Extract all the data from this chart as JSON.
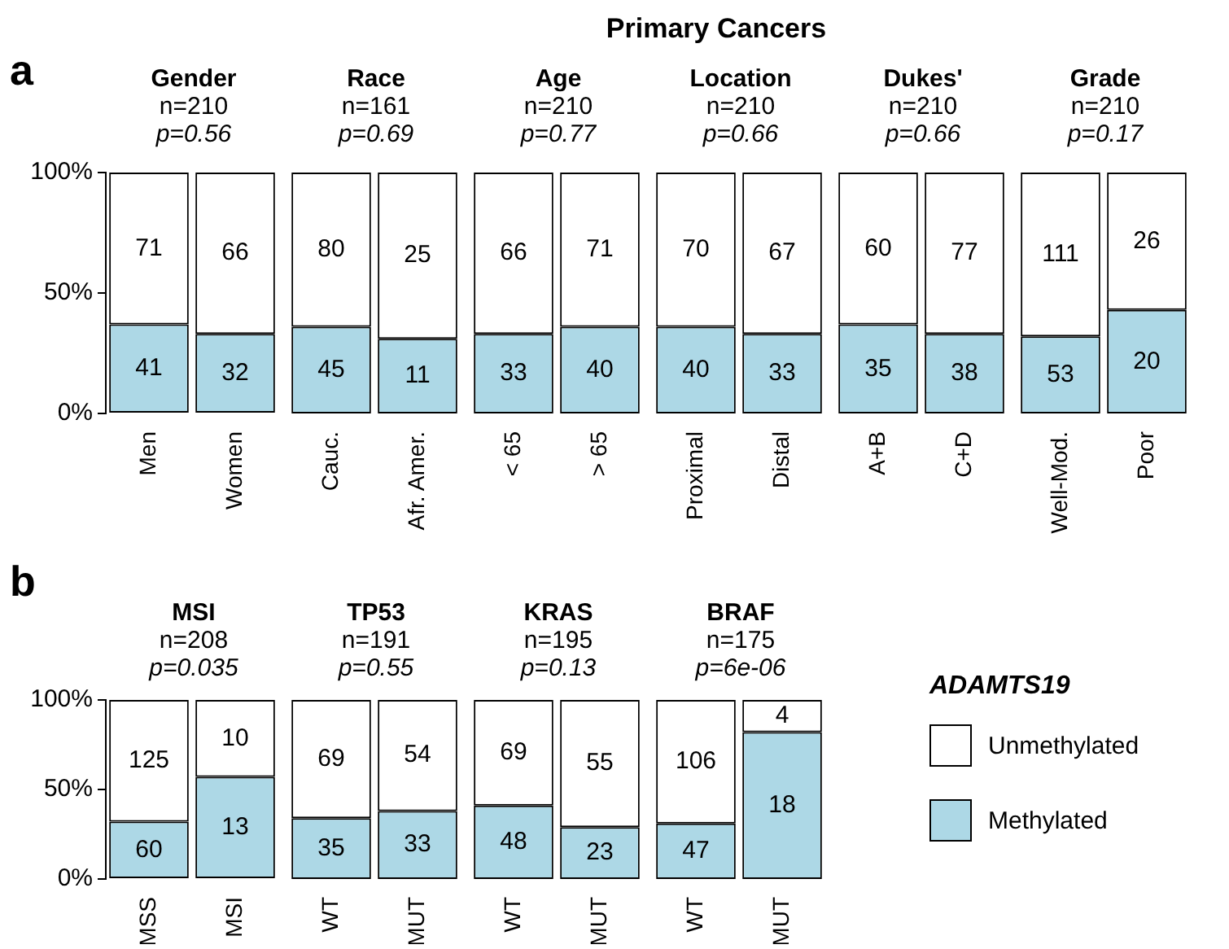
{
  "chart_data": [
    {
      "type": "bar",
      "title": "Gender",
      "subtitle": "n=210\np=0.56",
      "annotations": [
        "a",
        "Primary Cancers",
        "41",
        "71",
        "32",
        "66"
      ],
      "categories": [
        "Men",
        "Women"
      ],
      "stacked": true,
      "ylim": [
        0,
        100
      ],
      "yticks": [
        {
          "value": 0,
          "label": "0%"
        },
        {
          "value": 50,
          "label": "50%"
        },
        {
          "value": 100,
          "label": "100%"
        }
      ],
      "series": [
        {
          "color": "#add8e6",
          "values": [
            37,
            33
          ]
        },
        {
          "color": "#ffffff",
          "values": [
            63,
            67
          ]
        }
      ]
    },
    {
      "type": "bar",
      "title": "Race",
      "subtitle": "n=161\np=0.69",
      "annotations": [
        "45",
        "80",
        "11",
        "25"
      ],
      "categories": [
        "Cauc.",
        "Afr. Amer."
      ],
      "stacked": true,
      "ylim": [
        0,
        100
      ],
      "tick_labels": "x",
      "series": [
        {
          "color": "#add8e6",
          "values": [
            36,
            31
          ]
        },
        {
          "color": "#ffffff",
          "values": [
            64,
            69
          ]
        }
      ]
    },
    {
      "type": "bar",
      "title": "Age",
      "subtitle": "n=210\np=0.77",
      "annotations": [
        "33",
        "66",
        "40",
        "71"
      ],
      "categories": [
        "< 65",
        "> 65"
      ],
      "stacked": true,
      "ylim": [
        0,
        100
      ],
      "tick_labels": "x",
      "series": [
        {
          "color": "#add8e6",
          "values": [
            33,
            36
          ]
        },
        {
          "color": "#ffffff",
          "values": [
            67,
            64
          ]
        }
      ]
    },
    {
      "type": "bar",
      "title": "Location",
      "subtitle": "n=210\np=0.66",
      "annotations": [
        "40",
        "70",
        "33",
        "67"
      ],
      "categories": [
        "Proximal",
        "Distal"
      ],
      "stacked": true,
      "ylim": [
        0,
        100
      ],
      "tick_labels": "x",
      "series": [
        {
          "color": "#add8e6",
          "values": [
            36,
            33
          ]
        },
        {
          "color": "#ffffff",
          "values": [
            64,
            67
          ]
        }
      ]
    },
    {
      "type": "bar",
      "title": "Dukes'",
      "subtitle": "n=210\np=0.66",
      "annotations": [
        "35",
        "60",
        "38",
        "77"
      ],
      "categories": [
        "A+B",
        "C+D"
      ],
      "stacked": true,
      "ylim": [
        0,
        100
      ],
      "tick_labels": "x",
      "series": [
        {
          "color": "#add8e6",
          "values": [
            37,
            33
          ]
        },
        {
          "color": "#ffffff",
          "values": [
            63,
            67
          ]
        }
      ]
    },
    {
      "type": "bar",
      "title": "Grade",
      "subtitle": "n=210\np=0.17",
      "annotations": [
        "53",
        "111",
        "20",
        "26"
      ],
      "categories": [
        "Well-Mod.",
        "Poor"
      ],
      "stacked": true,
      "ylim": [
        0,
        100
      ],
      "tick_labels": "x",
      "series": [
        {
          "color": "#add8e6",
          "values": [
            32,
            43
          ]
        },
        {
          "color": "#ffffff",
          "values": [
            68,
            57
          ]
        }
      ]
    },
    {
      "type": "bar",
      "title": "MSI",
      "subtitle": "n=208\np=0.035",
      "annotations": [
        "b",
        "60",
        "125",
        "13",
        "10"
      ],
      "categories": [
        "MSS",
        "MSI"
      ],
      "stacked": true,
      "ylim": [
        0,
        100
      ],
      "yticks": [
        {
          "value": 0,
          "label": "0%"
        },
        {
          "value": 50,
          "label": "50%"
        },
        {
          "value": 100,
          "label": "100%"
        }
      ],
      "series": [
        {
          "color": "#add8e6",
          "values": [
            32,
            57
          ]
        },
        {
          "color": "#ffffff",
          "values": [
            68,
            43
          ]
        }
      ]
    },
    {
      "type": "bar",
      "title": "TP53",
      "subtitle": "n=191\np=0.55",
      "annotations": [
        "35",
        "69",
        "33",
        "54"
      ],
      "categories": [
        "WT",
        "MUT"
      ],
      "stacked": true,
      "ylim": [
        0,
        100
      ],
      "tick_labels": "x",
      "series": [
        {
          "color": "#add8e6",
          "values": [
            34,
            38
          ]
        },
        {
          "color": "#ffffff",
          "values": [
            66,
            62
          ]
        }
      ]
    },
    {
      "type": "bar",
      "title": "KRAS",
      "subtitle": "n=195\np=0.13",
      "annotations": [
        "48",
        "69",
        "23",
        "55"
      ],
      "categories": [
        "WT",
        "MUT"
      ],
      "stacked": true,
      "ylim": [
        0,
        100
      ],
      "tick_labels": "x",
      "series": [
        {
          "color": "#add8e6",
          "values": [
            41,
            29
          ]
        },
        {
          "color": "#ffffff",
          "values": [
            59,
            71
          ]
        }
      ]
    },
    {
      "type": "bar",
      "title": "BRAF",
      "subtitle": "n=175\np=6e-06",
      "annotations": [
        "47",
        "106",
        "18",
        "4"
      ],
      "categories": [
        "WT",
        "MUT"
      ],
      "stacked": true,
      "ylim": [
        0,
        100
      ],
      "tick_labels": "x",
      "legend": "right",
      "legend_title": "ADAMTS19",
      "series": [
        {
          "name": "Methylated",
          "color": "#add8e6",
          "values": [
            31,
            82
          ]
        },
        {
          "name": "Unmethylated",
          "color": "#ffffff",
          "values": [
            69,
            18
          ]
        }
      ]
    }
  ]
}
